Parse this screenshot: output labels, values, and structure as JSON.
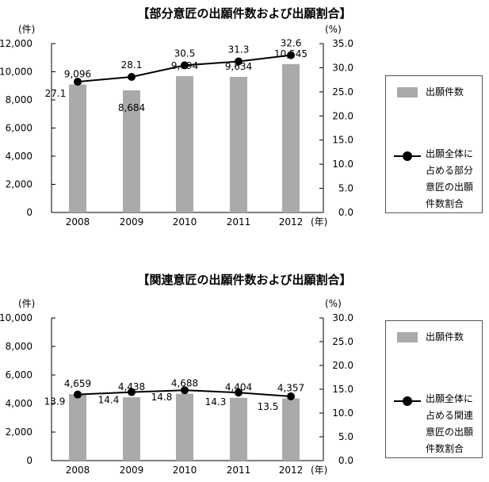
{
  "chart_data": [
    {
      "type": "bar",
      "title": "【部分意匠の出願件数および出願割合】",
      "left_unit": "(件)",
      "right_unit": "(%)",
      "x_unit": "(年)",
      "categories": [
        "2008",
        "2009",
        "2010",
        "2011",
        "2012"
      ],
      "ylim_left": [
        0,
        12000
      ],
      "ylim_right": [
        0,
        35
      ],
      "left_ticks": [
        "0",
        "2,000",
        "4,000",
        "6,000",
        "8,000",
        "10,000",
        "12,000"
      ],
      "right_ticks": [
        "0.0",
        "5.0",
        "10.0",
        "15.0",
        "20.0",
        "25.0",
        "30.0",
        "35.0"
      ],
      "series": [
        {
          "name": "出願件数",
          "type": "bar",
          "axis": "left",
          "values": [
            9096,
            8684,
            9694,
            9634,
            10545
          ],
          "labels": [
            "9,096",
            "8,684",
            "9,694",
            "9,634",
            "10,545"
          ]
        },
        {
          "name": "出願全体に占める部分意匠の出願件数割合",
          "type": "line",
          "axis": "right",
          "values": [
            27.1,
            28.1,
            30.5,
            31.3,
            32.6
          ],
          "labels": [
            "27.1",
            "28.1",
            "30.5",
            "31.3",
            "32.6"
          ]
        }
      ],
      "legend": {
        "bar_label": "出願件数",
        "line_lines": [
          "出願全体に",
          "占める部分",
          "意匠の出願",
          "件数割合"
        ]
      }
    },
    {
      "type": "bar",
      "title": "【関連意匠の出願件数および出願割合】",
      "left_unit": "(件)",
      "right_unit": "(%)",
      "x_unit": "(年)",
      "categories": [
        "2008",
        "2009",
        "2010",
        "2011",
        "2012"
      ],
      "ylim_left": [
        0,
        10000
      ],
      "ylim_right": [
        0,
        30
      ],
      "left_ticks": [
        "0",
        "2,000",
        "4,000",
        "6,000",
        "8,000",
        "10,000"
      ],
      "right_ticks": [
        "0.0",
        "5.0",
        "10.0",
        "15.0",
        "20.0",
        "25.0",
        "30.0"
      ],
      "series": [
        {
          "name": "出願件数",
          "type": "bar",
          "axis": "left",
          "values": [
            4659,
            4438,
            4688,
            4404,
            4357
          ],
          "labels": [
            "4,659",
            "4,438",
            "4,688",
            "4,404",
            "4,357"
          ]
        },
        {
          "name": "出願全体に占める関連意匠の出願件数割合",
          "type": "line",
          "axis": "right",
          "values": [
            13.9,
            14.4,
            14.8,
            14.3,
            13.5
          ],
          "labels": [
            "13.9",
            "14.4",
            "14.8",
            "14.3",
            "13.5"
          ]
        }
      ],
      "legend": {
        "bar_label": "出願件数",
        "line_lines": [
          "出願全体に",
          "占める関連",
          "意匠の出願",
          "件数割合"
        ]
      }
    }
  ]
}
